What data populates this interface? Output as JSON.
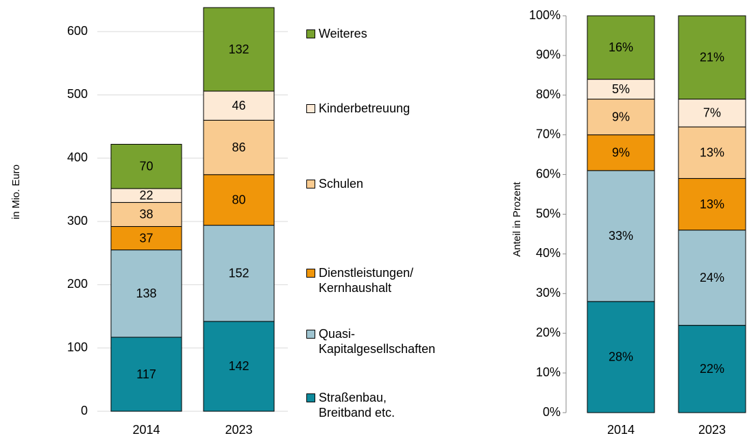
{
  "chart_data": [
    {
      "type": "stacked-bar",
      "y_label": "in Mio. Euro",
      "categories": [
        "2014",
        "2023"
      ],
      "ylim": [
        0,
        650
      ],
      "yticks": [
        0,
        100,
        200,
        300,
        400,
        500,
        600
      ],
      "grid": true,
      "series": [
        {
          "name": "Straßenbau,\nBreitband etc.",
          "color": "#0e8a9c",
          "values": [
            117,
            142
          ]
        },
        {
          "name": "Quasi-\nKapitalgesellschaften",
          "color": "#9fc4d0",
          "values": [
            138,
            152
          ]
        },
        {
          "name": "Dienstleistungen/\nKernhaushalt",
          "color": "#f0960a",
          "values": [
            37,
            80
          ]
        },
        {
          "name": "Schulen",
          "color": "#f9cb90",
          "values": [
            38,
            86
          ]
        },
        {
          "name": "Kinderbetreuung",
          "color": "#fdead6",
          "values": [
            22,
            46
          ]
        },
        {
          "name": "Weiteres",
          "color": "#78a22f",
          "values": [
            70,
            132
          ]
        }
      ]
    },
    {
      "type": "stacked-bar",
      "y_label": "Anteil in Prozent",
      "categories": [
        "2014",
        "2023"
      ],
      "ylim": [
        0,
        100
      ],
      "yticks": [
        {
          "value": 0,
          "label": "0%"
        },
        {
          "value": 10,
          "label": "10%"
        },
        {
          "value": 20,
          "label": "20%"
        },
        {
          "value": 30,
          "label": "30%"
        },
        {
          "value": 40,
          "label": "40%"
        },
        {
          "value": 50,
          "label": "50%"
        },
        {
          "value": 60,
          "label": "60%"
        },
        {
          "value": 70,
          "label": "70%"
        },
        {
          "value": 80,
          "label": "80%"
        },
        {
          "value": 90,
          "label": "90%"
        },
        {
          "value": 100,
          "label": "100%"
        }
      ],
      "grid": false,
      "series": [
        {
          "color": "#0e8a9c",
          "values": [
            28,
            22
          ],
          "value_labels": [
            "28%",
            "22%"
          ]
        },
        {
          "color": "#9fc4d0",
          "values": [
            33,
            24
          ],
          "value_labels": [
            "33%",
            "24%"
          ]
        },
        {
          "color": "#f0960a",
          "values": [
            9,
            13
          ],
          "value_labels": [
            "9%",
            "13%"
          ]
        },
        {
          "color": "#f9cb90",
          "values": [
            9,
            13
          ],
          "value_labels": [
            "9%",
            "13%"
          ]
        },
        {
          "color": "#fdead6",
          "values": [
            5,
            7
          ],
          "value_labels": [
            "5%",
            "7%"
          ]
        },
        {
          "color": "#78a22f",
          "values": [
            16,
            21
          ],
          "value_labels": [
            "16%",
            "21%"
          ]
        }
      ]
    }
  ]
}
